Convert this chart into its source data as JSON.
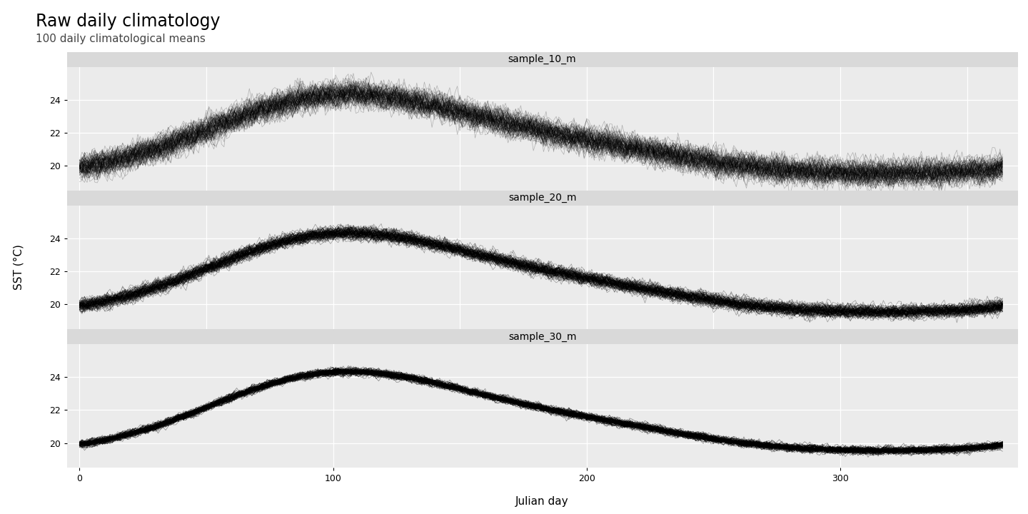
{
  "title": "Raw daily climatology",
  "subtitle": "100 daily climatological means",
  "ylabel": "SST (°C)",
  "xlabel": "Julian day",
  "panel_labels": [
    "sample_10_m",
    "sample_20_m",
    "sample_30_m"
  ],
  "n_days": 365,
  "n_realizations": 100,
  "ylim": [
    18.5,
    26.0
  ],
  "yticks": [
    20,
    22,
    24
  ],
  "xticks": [
    0,
    100,
    200,
    300
  ],
  "plot_bg_color": "#EBEBEB",
  "strip_bg_color": "#D9D9D9",
  "outer_bg": "#FFFFFF",
  "line_color": "#000000",
  "line_alpha_10": 0.25,
  "line_alpha_20": 0.35,
  "line_alpha_30": 0.45,
  "line_width": 0.5,
  "noise_scale_10": 0.55,
  "noise_scale_20": 0.28,
  "noise_scale_30": 0.16,
  "title_fontsize": 17,
  "subtitle_fontsize": 11,
  "label_fontsize": 11,
  "tick_fontsize": 9,
  "panel_label_fontsize": 10
}
